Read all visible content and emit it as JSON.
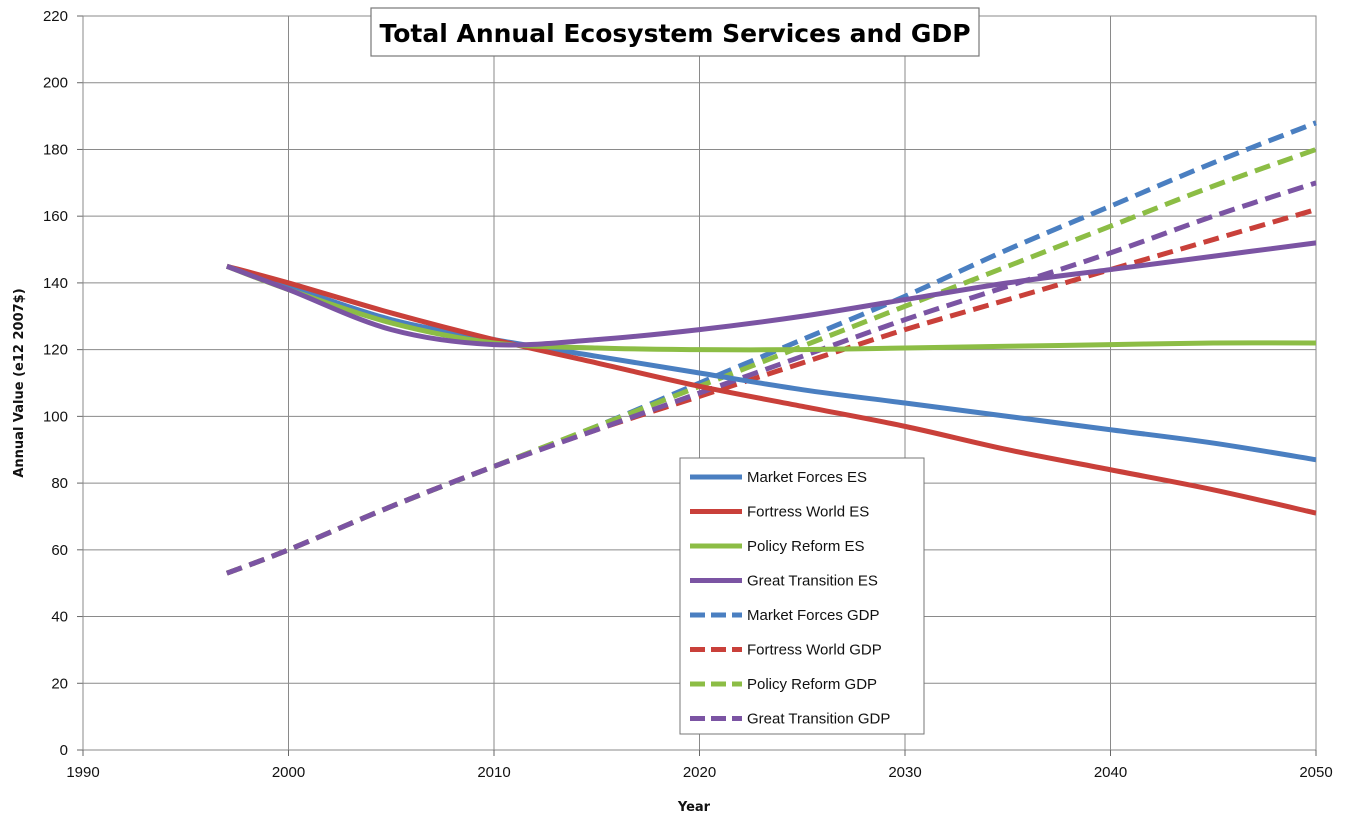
{
  "chart_data": {
    "type": "line",
    "title": "Total Annual Ecosystem Services and GDP",
    "xlabel": "Year",
    "ylabel": "Annual Value (e12 2007$)",
    "xlim": [
      1990,
      2050
    ],
    "ylim": [
      0,
      220
    ],
    "xticks": [
      1990,
      2000,
      2010,
      2020,
      2030,
      2040,
      2050
    ],
    "yticks": [
      0,
      20,
      40,
      60,
      80,
      100,
      120,
      140,
      160,
      180,
      200,
      220
    ],
    "grid": true,
    "legend_position": "bottom-center",
    "series": [
      {
        "name": "Market Forces ES",
        "color": "#4a7fc1",
        "dash": false,
        "x": [
          1997,
          2000,
          2005,
          2010,
          2015,
          2020,
          2025,
          2030,
          2035,
          2040,
          2045,
          2050
        ],
        "y": [
          145,
          139,
          129,
          123,
          118,
          113,
          108,
          104,
          100,
          96,
          92,
          87
        ]
      },
      {
        "name": "Fortress World ES",
        "color": "#c9403a",
        "dash": false,
        "x": [
          1997,
          2000,
          2005,
          2010,
          2015,
          2020,
          2025,
          2030,
          2035,
          2040,
          2045,
          2050
        ],
        "y": [
          145,
          140,
          131,
          123,
          116,
          109,
          103,
          97,
          90,
          84,
          78,
          71
        ]
      },
      {
        "name": "Policy Reform ES",
        "color": "#8cbd45",
        "dash": false,
        "x": [
          1997,
          2000,
          2005,
          2010,
          2015,
          2020,
          2025,
          2030,
          2035,
          2040,
          2045,
          2050
        ],
        "y": [
          145,
          138,
          128,
          122,
          120.5,
          120,
          120,
          120.5,
          121,
          121.5,
          122,
          122
        ]
      },
      {
        "name": "Great Transition ES",
        "color": "#7b54a3",
        "dash": false,
        "x": [
          1997,
          2000,
          2005,
          2010,
          2015,
          2020,
          2025,
          2030,
          2035,
          2040,
          2045,
          2050
        ],
        "y": [
          145,
          138,
          126,
          121.5,
          123,
          126,
          130,
          135,
          140,
          144,
          148,
          152
        ]
      },
      {
        "name": "Market Forces GDP",
        "color": "#4a7fc1",
        "dash": true,
        "x": [
          1997,
          2000,
          2005,
          2010,
          2015,
          2020,
          2025,
          2030,
          2035,
          2040,
          2045,
          2050
        ],
        "y": [
          53,
          60,
          73,
          85,
          97,
          110,
          123,
          136,
          150,
          163,
          176,
          188
        ]
      },
      {
        "name": "Fortress World GDP",
        "color": "#c9403a",
        "dash": true,
        "x": [
          1997,
          2000,
          2005,
          2010,
          2015,
          2020,
          2025,
          2030,
          2035,
          2040,
          2045,
          2050
        ],
        "y": [
          53,
          60,
          73,
          85,
          96,
          106,
          116,
          126,
          135,
          144,
          153,
          162
        ]
      },
      {
        "name": "Policy Reform GDP",
        "color": "#8cbd45",
        "dash": true,
        "x": [
          1997,
          2000,
          2005,
          2010,
          2015,
          2020,
          2025,
          2030,
          2035,
          2040,
          2045,
          2050
        ],
        "y": [
          53,
          60,
          73,
          85,
          97,
          109,
          121,
          133,
          145,
          157,
          169,
          180
        ]
      },
      {
        "name": "Great Transition GDP",
        "color": "#7b54a3",
        "dash": true,
        "x": [
          1997,
          2000,
          2005,
          2010,
          2015,
          2020,
          2025,
          2030,
          2035,
          2040,
          2045,
          2050
        ],
        "y": [
          53,
          60,
          73,
          85,
          96,
          107,
          118,
          129,
          139,
          149,
          160,
          170
        ]
      }
    ]
  }
}
